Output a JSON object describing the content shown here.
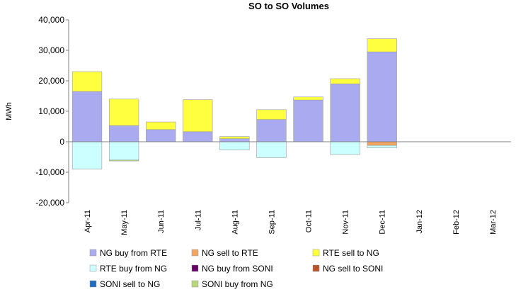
{
  "chart_data": {
    "type": "stacked_bar",
    "title": "SO to SO Volumes",
    "y_label": "MWh",
    "categories": [
      "Apr-11",
      "May-11",
      "Jun-11",
      "Jul-11",
      "Aug-11",
      "Sep-11",
      "Oct-11",
      "Nov-11",
      "Dec-11",
      "Jan-12",
      "Feb-12",
      "Mar-12"
    ],
    "series": [
      {
        "name": "NG buy from RTE",
        "color": "#a9aaf0",
        "values": [
          16500,
          5300,
          4000,
          3300,
          1000,
          7300,
          13700,
          19000,
          29500,
          0,
          0,
          0
        ]
      },
      {
        "name": "NG sell to RTE",
        "color": "#f5a45c",
        "values": [
          0,
          0,
          0,
          0,
          0,
          0,
          0,
          0,
          -1200,
          0,
          0,
          0
        ]
      },
      {
        "name": "RTE sell to NG",
        "color": "#ffff40",
        "values": [
          6500,
          8700,
          2500,
          10500,
          700,
          3200,
          1000,
          1700,
          4300,
          0,
          0,
          0
        ]
      },
      {
        "name": "RTE buy from NG",
        "color": "#ccffff",
        "values": [
          -9000,
          -6000,
          0,
          0,
          -2700,
          -5200,
          0,
          -4200,
          -800,
          0,
          0,
          0
        ]
      },
      {
        "name": "NG buy from SONI",
        "color": "#660066",
        "values": [
          0,
          0,
          0,
          0,
          0,
          0,
          0,
          0,
          0,
          0,
          0,
          0
        ]
      },
      {
        "name": "NG sell to SONI",
        "color": "#b8542a",
        "values": [
          0,
          0,
          0,
          0,
          0,
          0,
          0,
          0,
          0,
          0,
          0,
          0
        ]
      },
      {
        "name": "SONI sell to NG",
        "color": "#1f6fc0",
        "values": [
          0,
          0,
          0,
          0,
          0,
          0,
          0,
          0,
          0,
          0,
          0,
          0
        ]
      },
      {
        "name": "SONI buy from NG",
        "color": "#b6d77a",
        "values": [
          0,
          -300,
          0,
          0,
          0,
          0,
          0,
          0,
          0,
          0,
          0,
          0
        ]
      }
    ],
    "ylim": [
      -20000,
      40000
    ],
    "yticks": [
      {
        "value": -20000,
        "label": "-20,000"
      },
      {
        "value": -10000,
        "label": "-10,000"
      },
      0,
      {
        "value": 10000,
        "label": "10,000"
      },
      {
        "value": 20000,
        "label": "20,000"
      },
      {
        "value": 30000,
        "label": "30,000"
      },
      {
        "value": 40000,
        "label": "40,000"
      }
    ]
  }
}
